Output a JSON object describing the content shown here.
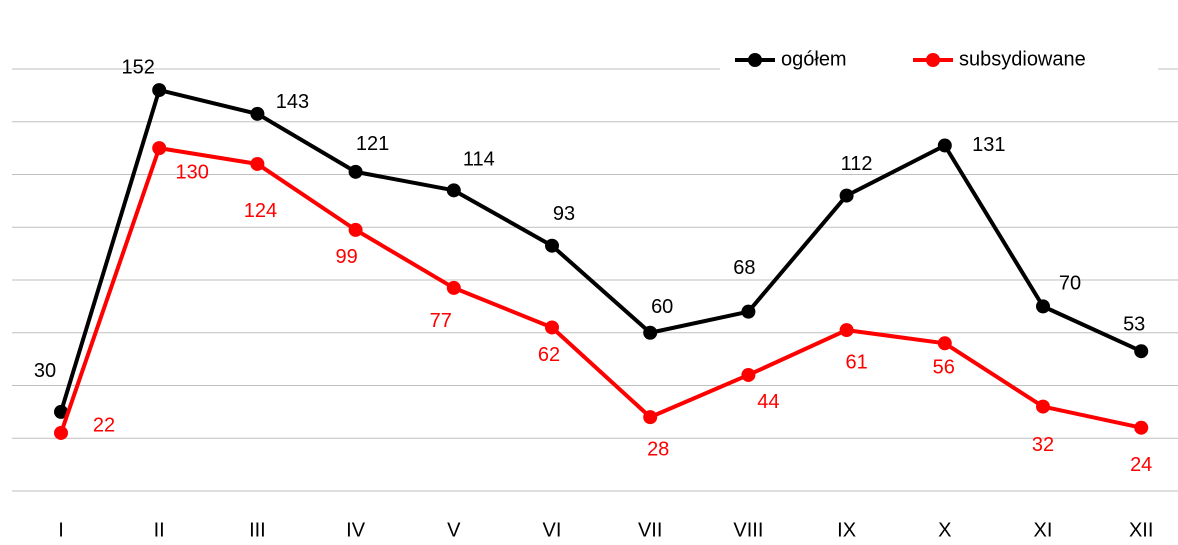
{
  "chart_data": {
    "type": "line",
    "categories": [
      "I",
      "II",
      "III",
      "IV",
      "V",
      "VI",
      "VII",
      "VIII",
      "IX",
      "X",
      "XI",
      "XII"
    ],
    "series": [
      {
        "name": "ogółem",
        "color": "#000000",
        "values": [
          30,
          152,
          143,
          121,
          114,
          93,
          60,
          68,
          112,
          131,
          70,
          53
        ]
      },
      {
        "name": "subsydiowane",
        "color": "#ff0000",
        "values": [
          22,
          130,
          124,
          99,
          77,
          62,
          28,
          44,
          61,
          56,
          32,
          24
        ]
      }
    ],
    "ylim": [
      0,
      160
    ],
    "yticks": [
      0,
      20,
      40,
      60,
      80,
      100,
      120,
      140,
      160
    ],
    "grid": true,
    "legend": "top-right"
  }
}
